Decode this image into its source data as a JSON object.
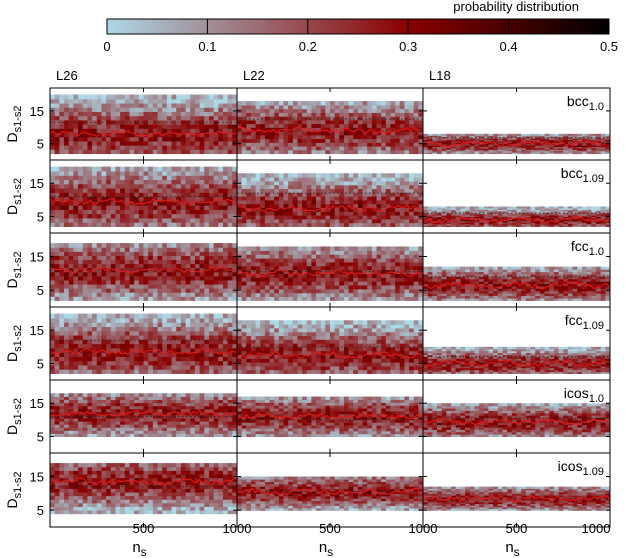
{
  "chart_data": {
    "type": "heatmap",
    "colorbar": {
      "title": "probability distribution",
      "ticks": [
        "0",
        "0.1",
        "0.2",
        "0.3",
        "0.4",
        "0.5"
      ],
      "range": [
        0,
        0.5
      ],
      "colors": [
        "#add8e6",
        "#8b0000",
        "#000000"
      ]
    },
    "columns": [
      {
        "label": "L26",
        "xlabel_main": "n",
        "xlabel_sub": "s"
      },
      {
        "label": "L22",
        "xlabel_main": "n",
        "xlabel_sub": "s"
      },
      {
        "label": "L18",
        "xlabel_main": "n",
        "xlabel_sub": "s"
      }
    ],
    "rows": [
      {
        "tag_main": "bcc",
        "tag_sub": "1.0",
        "ylabel_main": "D",
        "ylabel_sub": "s1-s2",
        "band": [
          [
            2,
            20
          ],
          [
            2,
            18
          ],
          [
            2,
            8
          ]
        ],
        "mean": [
          8.0,
          9.0,
          5.0
        ],
        "dotted": [
          11.5,
          12.5,
          6.8
        ]
      },
      {
        "tag_main": "bcc",
        "tag_sub": "1.09",
        "ylabel_main": "D",
        "ylabel_sub": "s1-s2",
        "band": [
          [
            2,
            20
          ],
          [
            2,
            18
          ],
          [
            2,
            8
          ]
        ],
        "mean": [
          9.5,
          7.5,
          4.0
        ],
        "dotted": [
          11.0,
          12.0,
          6.0
        ]
      },
      {
        "tag_main": "fcc",
        "tag_sub": "1.0",
        "ylabel_main": "D",
        "ylabel_sub": "s1-s2",
        "band": [
          [
            2,
            19
          ],
          [
            2,
            18
          ],
          [
            2,
            12
          ]
        ],
        "mean": [
          11.0,
          10.0,
          6.5
        ],
        "dotted": [
          11.0,
          10.5,
          9.0
        ]
      },
      {
        "tag_main": "fcc",
        "tag_sub": "1.09",
        "ylabel_main": "D",
        "ylabel_sub": "s1-s2",
        "band": [
          [
            2,
            20
          ],
          [
            2,
            18
          ],
          [
            2,
            10
          ]
        ],
        "mean": [
          8.5,
          7.5,
          5.0
        ],
        "dotted": [
          12.0,
          10.0,
          7.0
        ]
      },
      {
        "tag_main": "icos",
        "tag_sub": "1.0",
        "ylabel_main": "D",
        "ylabel_sub": "s1-s2",
        "band": [
          [
            5,
            18
          ],
          [
            5,
            17
          ],
          [
            5,
            15
          ]
        ],
        "mean": [
          12.0,
          11.0,
          9.5
        ],
        "dotted": [
          11.0,
          10.0,
          10.5
        ]
      },
      {
        "tag_main": "icos",
        "tag_sub": "1.09",
        "ylabel_main": "D",
        "ylabel_sub": "s1-s2",
        "band": [
          [
            4,
            19
          ],
          [
            5,
            15
          ],
          [
            5,
            12
          ]
        ],
        "mean": [
          13.5,
          10.5,
          8.5
        ],
        "dotted": [
          12.0,
          10.5,
          8.5
        ]
      }
    ],
    "x_range": [
      0,
      1000
    ],
    "x_ticks": [
      500,
      1000
    ],
    "x_tick_labels": [
      "500",
      "1000"
    ],
    "y_range": [
      0,
      22
    ],
    "y_ticks": [
      5,
      15
    ],
    "y_tick_labels": [
      "5",
      "15"
    ],
    "series_colors": {
      "mean_line": "#e11a1a",
      "dotted_line": "#2a2a2a",
      "frame": "#000000"
    }
  }
}
